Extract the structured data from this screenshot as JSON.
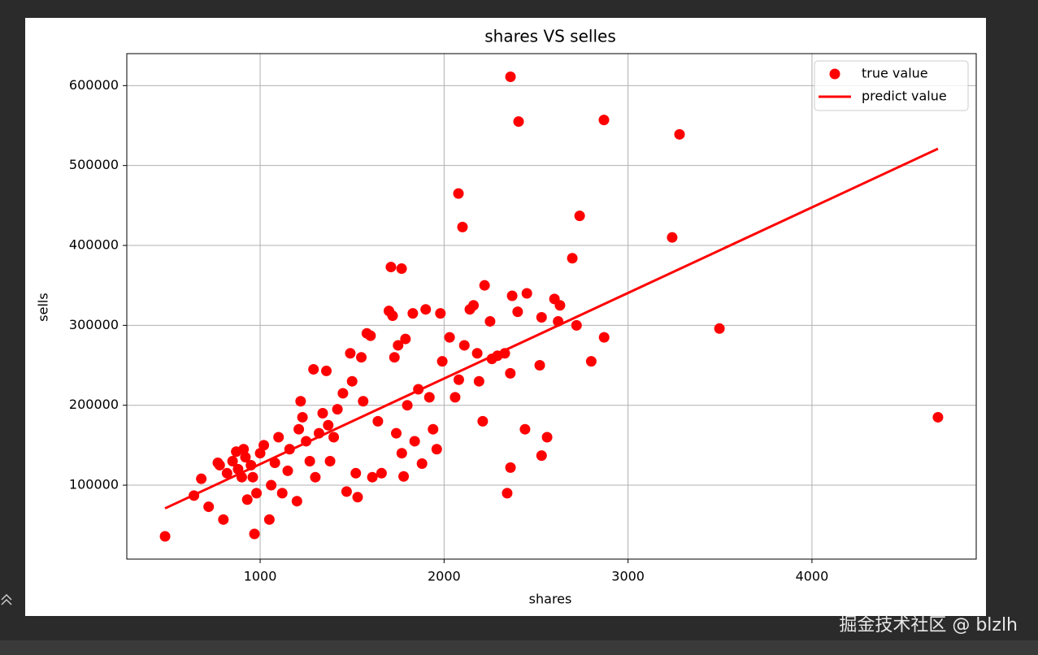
{
  "chart_data": {
    "type": "scatter",
    "title": "shares VS selles",
    "x_label": "shares",
    "y_label": "sells",
    "xlim": [
      275,
      4893
    ],
    "ylim": [
      7500,
      640000
    ],
    "xticks": [
      1000,
      2000,
      3000,
      4000
    ],
    "yticks": [
      100000,
      200000,
      300000,
      400000,
      500000,
      600000
    ],
    "grid": true,
    "legend": "upper right",
    "series": [
      {
        "name": "true value",
        "color": "#ff0000",
        "x": [
          2361,
          2405,
          2869,
          3280,
          2078,
          2100,
          2737,
          3240,
          3497,
          4685,
          2697,
          1711,
          1769,
          483,
          969,
          2343,
          2361,
          640,
          680,
          720,
          800,
          780,
          770,
          820,
          850,
          870,
          880,
          900,
          910,
          920,
          930,
          950,
          960,
          980,
          1000,
          1020,
          1050,
          1060,
          1080,
          1100,
          1120,
          1150,
          1160,
          1200,
          1210,
          1220,
          1230,
          1250,
          1270,
          1290,
          1300,
          1320,
          1340,
          1360,
          1370,
          1380,
          1400,
          1420,
          1450,
          1470,
          1490,
          1500,
          1520,
          1530,
          1550,
          1560,
          1580,
          1600,
          1610,
          1640,
          1660,
          1700,
          1720,
          1730,
          1740,
          1750,
          1770,
          1780,
          1790,
          1800,
          1830,
          1840,
          1860,
          1880,
          1900,
          1920,
          1940,
          1960,
          1980,
          1990,
          2030,
          2060,
          2080,
          2110,
          2140,
          2160,
          2180,
          2190,
          2210,
          2220,
          2250,
          2260,
          2290,
          2330,
          2360,
          2370,
          2400,
          2440,
          2450,
          2520,
          2530,
          2530,
          2560,
          2600,
          2620,
          2630,
          2720,
          2800,
          2870
        ],
        "values": [
          611000,
          555000,
          557000,
          539000,
          465000,
          423000,
          437000,
          410000,
          296000,
          185000,
          384000,
          373000,
          371000,
          36000,
          39000,
          90000,
          122000,
          87000,
          108000,
          73000,
          57000,
          125000,
          128000,
          115000,
          130000,
          142000,
          120000,
          110000,
          145000,
          135000,
          82000,
          125000,
          110000,
          90000,
          140000,
          150000,
          57000,
          100000,
          128000,
          160000,
          90000,
          118000,
          145000,
          80000,
          170000,
          205000,
          185000,
          155000,
          130000,
          245000,
          110000,
          165000,
          190000,
          243000,
          175000,
          130000,
          160000,
          195000,
          215000,
          92000,
          265000,
          230000,
          115000,
          85000,
          260000,
          205000,
          290000,
          287000,
          110000,
          180000,
          115000,
          318000,
          312000,
          260000,
          165000,
          275000,
          140000,
          111000,
          283000,
          200000,
          315000,
          155000,
          220000,
          127000,
          320000,
          210000,
          170000,
          145000,
          315000,
          255000,
          285000,
          210000,
          232000,
          275000,
          320000,
          325000,
          265000,
          230000,
          180000,
          350000,
          305000,
          258000,
          262000,
          265000,
          240000,
          337000,
          317000,
          170000,
          340000,
          250000,
          137000,
          310000,
          160000,
          333000,
          305000,
          325000,
          300000,
          255000,
          285000
        ]
      },
      {
        "name": "predict value",
        "color": "#ff0000",
        "type": "line",
        "x": [
          483,
          4685
        ],
        "values": [
          71000,
          521000
        ]
      }
    ]
  },
  "watermark": "掘金技术社区 @ blzlh"
}
